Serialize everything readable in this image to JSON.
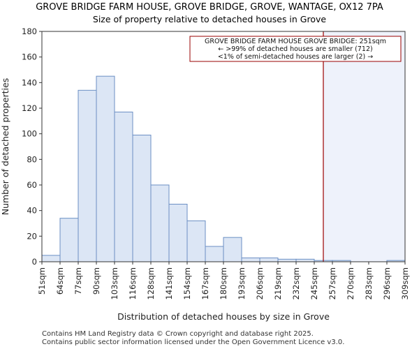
{
  "chart_data": {
    "type": "bar",
    "title": "GROVE BRIDGE FARM HOUSE, GROVE BRIDGE, GROVE, WANTAGE, OX12 7PA",
    "subtitle": "Size of property relative to detached houses in Grove",
    "xlabel": "Distribution of detached houses by size in Grove",
    "ylabel": "Number of detached properties",
    "ylim": [
      0,
      180
    ],
    "yticks": [
      0,
      20,
      40,
      60,
      80,
      100,
      120,
      140,
      160,
      180
    ],
    "bin_edges": [
      51,
      64,
      77,
      90,
      103,
      116,
      128,
      141,
      154,
      167,
      180,
      193,
      206,
      219,
      232,
      245,
      257,
      270,
      283,
      296,
      309
    ],
    "xtick_labels": [
      "51sqm",
      "64sqm",
      "77sqm",
      "90sqm",
      "103sqm",
      "116sqm",
      "128sqm",
      "141sqm",
      "154sqm",
      "167sqm",
      "180sqm",
      "193sqm",
      "206sqm",
      "219sqm",
      "232sqm",
      "245sqm",
      "257sqm",
      "270sqm",
      "283sqm",
      "296sqm",
      "309sqm"
    ],
    "values": [
      5,
      34,
      134,
      145,
      117,
      99,
      60,
      45,
      32,
      12,
      19,
      3,
      3,
      2,
      2,
      1,
      1,
      0,
      0,
      1
    ],
    "marker": {
      "value": 251,
      "color": "#990000",
      "annotation": [
        "GROVE BRIDGE FARM HOUSE GROVE BRIDGE: 251sqm",
        "← >99% of detached houses are smaller (712)",
        "<1% of semi-detached houses are larger (2) →"
      ]
    },
    "bar_fill": "#dce6f5",
    "bar_edge": "#6b8fc4",
    "highlight_fill": "#eef2fb",
    "grid": false
  },
  "footer": [
    "Contains HM Land Registry data © Crown copyright and database right 2025.",
    "Contains public sector information licensed under the Open Government Licence v3.0."
  ]
}
